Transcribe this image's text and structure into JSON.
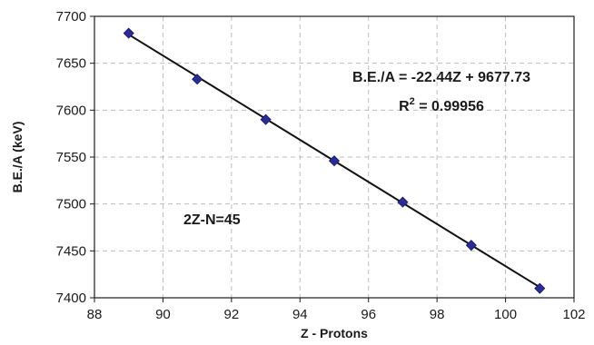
{
  "chart_data": {
    "type": "scatter",
    "xlabel": "Z - Protons",
    "ylabel": "B.E./A (keV)",
    "xlim": [
      88,
      102
    ],
    "ylim": [
      7400,
      7700
    ],
    "xticks": [
      88,
      90,
      92,
      94,
      96,
      98,
      100,
      102
    ],
    "yticks": [
      7400,
      7450,
      7500,
      7550,
      7600,
      7650,
      7700
    ],
    "grid": true,
    "series": [
      {
        "x": [
          89,
          91,
          93,
          95,
          97,
          99,
          101
        ],
        "y": [
          7682,
          7633,
          7590,
          7546,
          7502,
          7456,
          7410
        ],
        "marker": "diamond",
        "color": "#2b2b9a"
      }
    ],
    "fit_line": {
      "slope": -22.44,
      "intercept": 9677.73,
      "x_range": [
        89,
        101
      ],
      "color": "#111111"
    },
    "annotations": {
      "equation": "B.E./A = -22.44Z + 9677.73",
      "r2_prefix": "R",
      "r2_sup": "2",
      "r2_value": " = 0.99956",
      "series_label": "2Z-N=45"
    }
  }
}
